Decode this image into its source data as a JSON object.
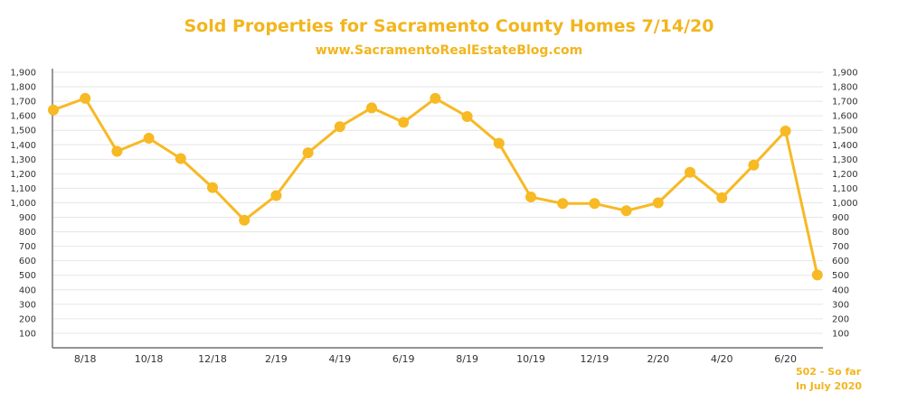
{
  "chart_data": {
    "type": "line",
    "title": "Sold Properties for Sacramento County Homes 7/14/20",
    "subtitle": "www.SacramentoRealEstateBlog.com",
    "xlabel": "",
    "ylabel": "",
    "ylim": [
      0,
      1900
    ],
    "yticks": [
      100,
      200,
      300,
      400,
      500,
      600,
      700,
      800,
      900,
      1000,
      1100,
      1200,
      1300,
      1400,
      1500,
      1600,
      1700,
      1800,
      1900
    ],
    "ytick_labels": [
      "100",
      "200",
      "300",
      "400",
      "500",
      "600",
      "700",
      "800",
      "900",
      "1,000",
      "1,100",
      "1,200",
      "1,300",
      "1,400",
      "1,500",
      "1,600",
      "1,700",
      "1,800",
      "1,900"
    ],
    "months": [
      "7/18",
      "8/18",
      "9/18",
      "10/18",
      "11/18",
      "12/18",
      "1/19",
      "2/19",
      "3/19",
      "4/19",
      "5/19",
      "6/19",
      "7/19",
      "8/19",
      "9/19",
      "10/19",
      "11/19",
      "12/19",
      "1/20",
      "2/20",
      "3/20",
      "4/20",
      "5/20",
      "6/20",
      "7/20"
    ],
    "xtick_labels": [
      "8/18",
      "10/18",
      "12/18",
      "2/19",
      "4/19",
      "6/19",
      "8/19",
      "10/19",
      "12/19",
      "2/20",
      "4/20",
      "6/20"
    ],
    "values": [
      1640,
      1720,
      1355,
      1445,
      1305,
      1105,
      880,
      1050,
      1345,
      1525,
      1655,
      1555,
      1720,
      1595,
      1410,
      1040,
      995,
      995,
      945,
      1000,
      1210,
      1035,
      1260,
      1495,
      502
    ],
    "grid": true,
    "legend": "none",
    "color": "#f7b924",
    "annotation_lines": [
      "502 - So far",
      "In July 2020"
    ]
  }
}
